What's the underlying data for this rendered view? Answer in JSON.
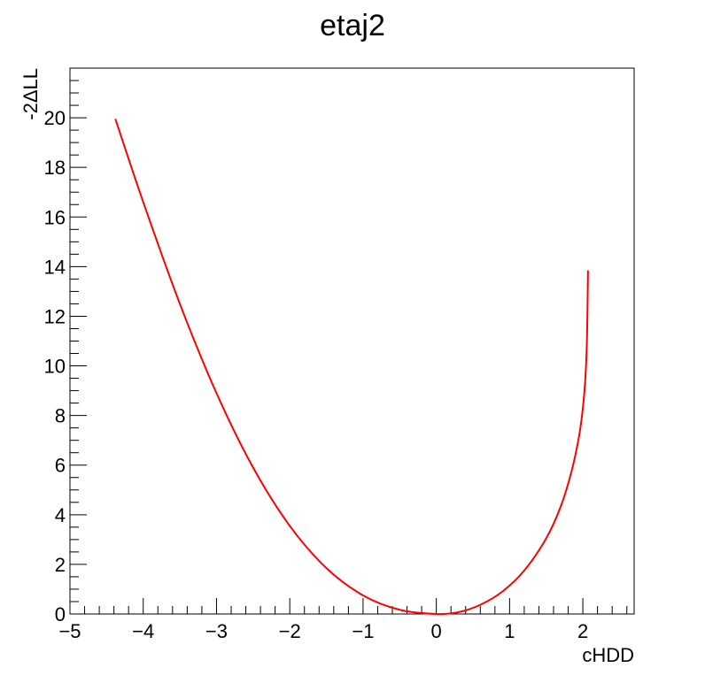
{
  "chart_data": {
    "type": "line",
    "title": "etaj2",
    "xlabel": "cHDD",
    "ylabel": "-2ΔLL",
    "xlim": [
      -5,
      2.7
    ],
    "ylim": [
      0,
      22
    ],
    "grid": false,
    "legend": "none",
    "x_ticks": [
      -5,
      -4,
      -3,
      -2,
      -1,
      0,
      1,
      2
    ],
    "x_tick_labels": [
      "−5",
      "−4",
      "−3",
      "−2",
      "−1",
      "0",
      "1",
      "2"
    ],
    "y_ticks": [
      0,
      2,
      4,
      6,
      8,
      10,
      12,
      14,
      16,
      18,
      20
    ],
    "y_tick_labels": [
      "0",
      "2",
      "4",
      "6",
      "8",
      "10",
      "12",
      "14",
      "16",
      "18",
      "20"
    ],
    "series": [
      {
        "color": "#ff0000",
        "x": [
          -4.38,
          -4.0,
          -3.5,
          -3.0,
          -2.5,
          -2.0,
          -1.5,
          -1.0,
          -0.5,
          0.0,
          0.3,
          0.6,
          0.9,
          1.2,
          1.5,
          1.7,
          1.85,
          1.95,
          2.0,
          2.03,
          2.05,
          2.06,
          2.07
        ],
        "y": [
          19.95,
          16.6,
          12.5,
          8.9,
          5.9,
          3.55,
          1.85,
          0.75,
          0.17,
          0.0,
          0.07,
          0.37,
          0.9,
          1.75,
          3.05,
          4.35,
          5.8,
          7.2,
          8.3,
          9.3,
          10.5,
          11.6,
          13.85
        ]
      }
    ]
  }
}
